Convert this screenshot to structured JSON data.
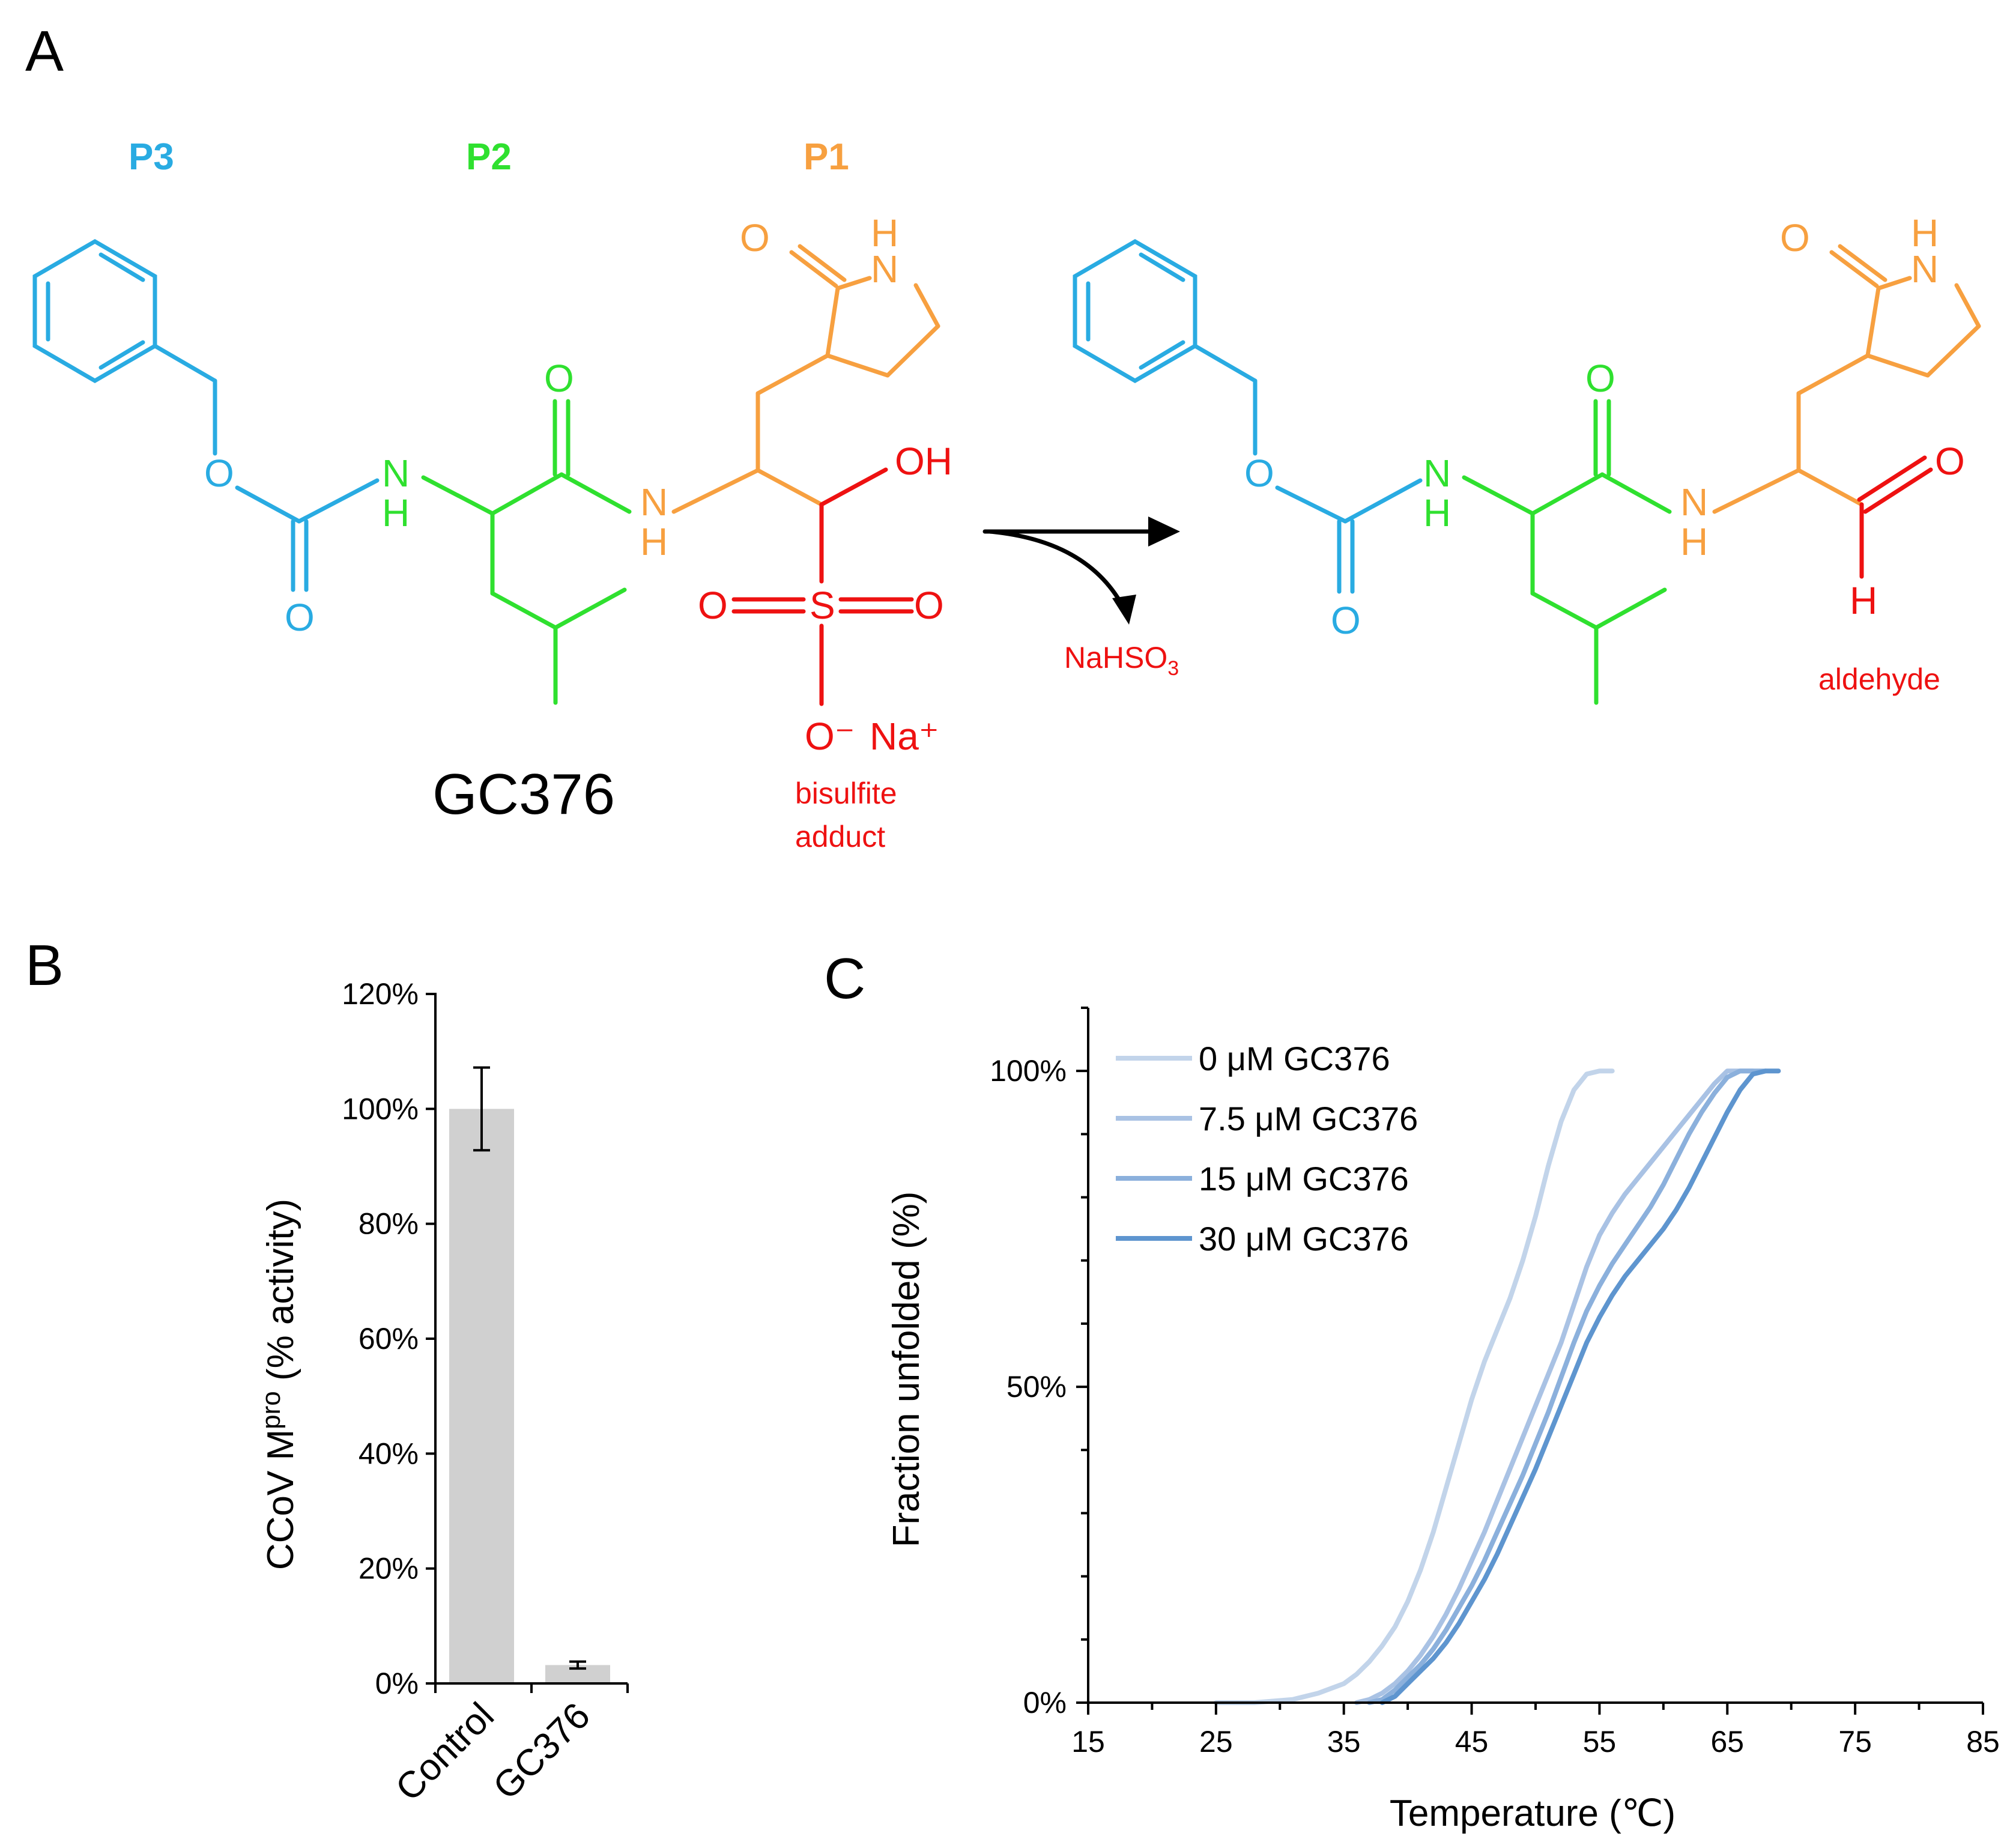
{
  "colors": {
    "p3": "#29abe2",
    "p2": "#2fe02f",
    "p1": "#f7a040",
    "warhead": "#ee1111",
    "bar": "#d0d0d0",
    "axis": "#000000",
    "series": [
      "#c2d4ea",
      "#a9c2e4",
      "#8bb0dc",
      "#5e95cf"
    ]
  },
  "panel_a": {
    "letter": "A",
    "region_labels": [
      "P3",
      "P2",
      "P1"
    ],
    "atoms": {
      "O": "O",
      "N": "N",
      "H": "H",
      "S": "S",
      "OH": "OH",
      "O_minus": "O⁻",
      "Na_plus": "Na⁺"
    },
    "compound_name": "GC376",
    "adduct_label": [
      "bisulfite",
      "adduct"
    ],
    "reagent": "NaHSO",
    "reagent_sub": "3",
    "product_label": "aldehyde"
  },
  "chart_data": [
    {
      "type": "bar",
      "panel": "B",
      "categories": [
        "Control",
        "GC376"
      ],
      "values": [
        100,
        3.2
      ],
      "error": [
        7.2,
        0.6
      ],
      "ylabel": "CCoV M",
      "ylabel_sup": "pro",
      "ylabel_tail": " (% activity)",
      "ylim": [
        0,
        120
      ],
      "ytick_values": [
        0,
        20,
        40,
        60,
        80,
        100,
        120
      ],
      "yticks": [
        "0%",
        "20%",
        "40%",
        "60%",
        "80%",
        "100%",
        "120%"
      ]
    },
    {
      "type": "line",
      "panel": "C",
      "xlabel": "Temperature (℃)",
      "ylabel": "Fraction unfolded (%)",
      "xlim": [
        15,
        85
      ],
      "ylim": [
        0,
        110
      ],
      "xticks": [
        15,
        25,
        35,
        45,
        55,
        65,
        75,
        85
      ],
      "ytick_values": [
        0,
        50,
        100
      ],
      "yticks": [
        "0%",
        "50%",
        "100%"
      ],
      "legend_position": "top-left",
      "series": [
        {
          "name": "0 μM GC376",
          "x": [
            25,
            28,
            31,
            33,
            35,
            36,
            37,
            38,
            39,
            40,
            41,
            42,
            43,
            44,
            45,
            46,
            47,
            48,
            49,
            50,
            51,
            52,
            53,
            54,
            55,
            56
          ],
          "y": [
            0,
            0,
            0.5,
            1.5,
            3,
            4.5,
            6.5,
            9,
            12,
            16,
            21,
            27,
            34,
            41,
            48,
            54,
            59,
            64,
            70,
            77,
            85,
            92,
            97,
            99.5,
            100,
            100
          ]
        },
        {
          "name": "7.5 μM GC376",
          "x": [
            36,
            37,
            38,
            39,
            40,
            41,
            42,
            43,
            44,
            45,
            46,
            47,
            48,
            49,
            50,
            51,
            52,
            53,
            54,
            55,
            56,
            57,
            58,
            59,
            60,
            61,
            62,
            63,
            64,
            65,
            66,
            67
          ],
          "y": [
            0,
            0.5,
            1.5,
            3,
            5,
            7.5,
            10.5,
            14,
            18,
            22.5,
            27,
            32,
            37,
            42,
            47,
            52,
            57,
            63,
            69,
            74,
            77.5,
            80.5,
            83,
            85.5,
            88,
            90.5,
            93,
            95.5,
            98,
            100,
            100,
            100
          ]
        },
        {
          "name": "15 μM GC376",
          "x": [
            37,
            38,
            39,
            40,
            41,
            42,
            43,
            44,
            45,
            46,
            47,
            48,
            49,
            50,
            51,
            52,
            53,
            54,
            55,
            56,
            57,
            58,
            59,
            60,
            61,
            62,
            63,
            64,
            65,
            66,
            67,
            68
          ],
          "y": [
            0,
            0.5,
            2,
            4,
            6,
            8.5,
            11.5,
            15,
            18.5,
            22.5,
            27,
            31.5,
            36,
            41,
            46,
            51.5,
            57,
            62,
            66,
            69.5,
            72.5,
            75.5,
            78.5,
            82,
            86,
            90,
            93.5,
            96.5,
            99,
            100,
            100,
            100
          ]
        },
        {
          "name": "30 μM GC376",
          "x": [
            38,
            39,
            40,
            41,
            42,
            43,
            44,
            45,
            46,
            47,
            48,
            49,
            50,
            51,
            52,
            53,
            54,
            55,
            56,
            57,
            58,
            59,
            60,
            61,
            62,
            63,
            64,
            65,
            66,
            67,
            68,
            69
          ],
          "y": [
            0,
            1,
            3,
            5,
            7,
            9.5,
            12.5,
            16,
            19.5,
            23.5,
            28,
            32.5,
            37,
            42,
            47,
            52,
            57,
            61,
            64.5,
            67.5,
            70,
            72.5,
            75,
            78,
            81.5,
            85.5,
            89.5,
            93.5,
            97,
            99.5,
            100,
            100
          ]
        }
      ]
    }
  ]
}
